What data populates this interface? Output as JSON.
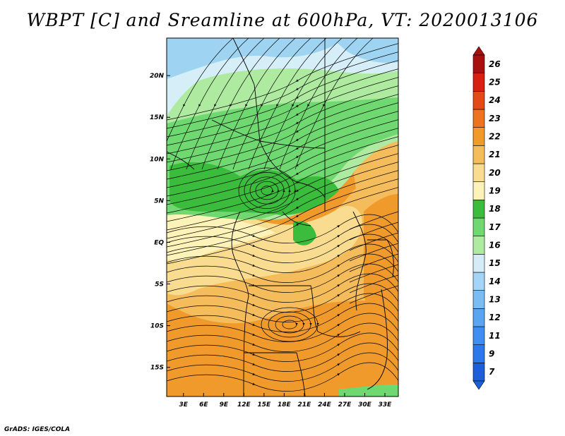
{
  "title": "WBPT [C] and Sreamline at 600hPa, VT: 2020013106",
  "credit": "GrADS: IGES/COLA",
  "axes": {
    "x_ticks": [
      {
        "value": 3,
        "label": "3E"
      },
      {
        "value": 6,
        "label": "6E"
      },
      {
        "value": 9,
        "label": "9E"
      },
      {
        "value": 12,
        "label": "12E"
      },
      {
        "value": 15,
        "label": "15E"
      },
      {
        "value": 18,
        "label": "18E"
      },
      {
        "value": 21,
        "label": "21E"
      },
      {
        "value": 24,
        "label": "24E"
      },
      {
        "value": 27,
        "label": "27E"
      },
      {
        "value": 30,
        "label": "30E"
      },
      {
        "value": 33,
        "label": "33E"
      }
    ],
    "y_ticks": [
      {
        "value": 20,
        "label": "20N"
      },
      {
        "value": 15,
        "label": "15N"
      },
      {
        "value": 10,
        "label": "10N"
      },
      {
        "value": 5,
        "label": "5N"
      },
      {
        "value": 0,
        "label": "EQ"
      },
      {
        "value": -5,
        "label": "5S"
      },
      {
        "value": -10,
        "label": "10S"
      },
      {
        "value": -15,
        "label": "15S"
      }
    ],
    "xlim": [
      0.5,
      35
    ],
    "ylim": [
      -18.5,
      24.5
    ]
  },
  "colorbar": {
    "labels": [
      "7",
      "9",
      "11",
      "12",
      "13",
      "14",
      "15",
      "16",
      "17",
      "18",
      "19",
      "20",
      "21",
      "22",
      "23",
      "24",
      "25",
      "26"
    ],
    "colors": [
      "#1c5fd8",
      "#2a78ea",
      "#3f8ff0",
      "#5aa5f2",
      "#7abcf4",
      "#a4d4f6",
      "#d4ecf8",
      "#aeeaa0",
      "#70d870",
      "#3cbc3c",
      "#fdf3b8",
      "#f9dc90",
      "#f5bc5c",
      "#f09a2c",
      "#ec7420",
      "#e44a18",
      "#d82010",
      "#a81010"
    ]
  },
  "colors": {
    "blue_zone": "#9ed4f2",
    "cyan_zone": "#d6eef8",
    "light_green": "#aeeaa0",
    "mid_green": "#70d870",
    "dark_green": "#3cbc3c",
    "pale_yellow": "#fdf3b8",
    "light_orange": "#f9dc90",
    "orange": "#f5bc5c",
    "deep_orange": "#f09a2c"
  }
}
